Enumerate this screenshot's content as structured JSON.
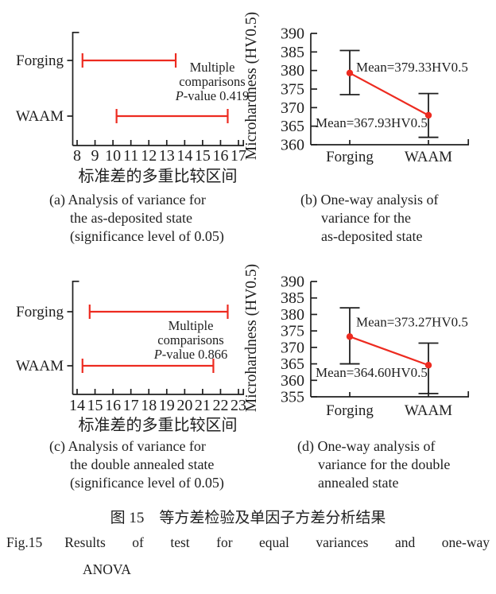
{
  "accent_color": "#ed2b20",
  "axis_color": "#1f1f1f",
  "panels": {
    "a": {
      "caption_lines": [
        "(a) Analysis of variance for",
        "the as-deposited state",
        "(significance level of 0.05)"
      ]
    },
    "b": {
      "caption_lines": [
        "(b) One-way analysis of",
        "variance for the",
        "as-deposited state"
      ]
    },
    "c": {
      "caption_lines": [
        "(c) Analysis of variance for",
        "the double annealed state",
        "(significance level of 0.05)"
      ]
    },
    "d": {
      "caption_lines": [
        "(d) One-way analysis of",
        "variance for the double",
        "annealed state"
      ]
    }
  },
  "figure_caption": {
    "zh": "图 15　等方差检验及单因子方差分析结果",
    "en_label": "Fig.15",
    "en_line1": "Results of test for equal variances and one-way",
    "en_line2": "ANOVA"
  },
  "chart_data": [
    {
      "id": "a",
      "type": "interval",
      "title": "(a) Analysis of variance for the as-deposited state (significance level of 0.05)",
      "categories": [
        "Forging",
        "WAAM"
      ],
      "intervals": [
        [
          8.3,
          13.5
        ],
        [
          10.2,
          16.4
        ]
      ],
      "xlim": [
        8,
        17
      ],
      "xticks": [
        8,
        9,
        10,
        11,
        12,
        13,
        14,
        15,
        16,
        17
      ],
      "xlabel": "标准差的多重比较区间",
      "annotation_lines": [
        "Multiple",
        "comparisons",
        "P-value 0.419"
      ],
      "color": "#ed2b20"
    },
    {
      "id": "b",
      "type": "line-error",
      "title": "(b) One-way analysis of variance for the as-deposited state",
      "categories": [
        "Forging",
        "WAAM"
      ],
      "means": [
        379.33,
        367.93
      ],
      "error_low": [
        373.5,
        362.0
      ],
      "error_high": [
        385.4,
        373.8
      ],
      "ylim": [
        360,
        390
      ],
      "yticks": [
        360,
        365,
        370,
        375,
        380,
        385,
        390
      ],
      "ylabel": "Microhardness (HV0.5)",
      "mean_labels": [
        "Mean=379.33HV0.5",
        "Mean=367.93HV0.5"
      ],
      "color": "#ed2b20"
    },
    {
      "id": "c",
      "type": "interval",
      "title": "(c) Analysis of variance for the double annealed state (significance level of 0.05)",
      "categories": [
        "Forging",
        "WAAM"
      ],
      "intervals": [
        [
          14.7,
          22.4
        ],
        [
          14.3,
          21.6
        ]
      ],
      "xlim": [
        14,
        23
      ],
      "xticks": [
        14,
        15,
        16,
        17,
        18,
        19,
        20,
        21,
        22,
        23
      ],
      "xlabel": "标准差的多重比较区间",
      "annotation_lines": [
        "Multiple",
        "comparisons",
        "P-value 0.866"
      ],
      "color": "#ed2b20"
    },
    {
      "id": "d",
      "type": "line-error",
      "title": "(d) One-way analysis of variance for the double annealed state",
      "categories": [
        "Forging",
        "WAAM"
      ],
      "means": [
        373.27,
        364.6
      ],
      "error_low": [
        365.0,
        356.0
      ],
      "error_high": [
        382.0,
        371.3
      ],
      "ylim": [
        355,
        390
      ],
      "yticks": [
        355,
        360,
        365,
        370,
        375,
        380,
        385,
        390
      ],
      "ylabel": "Microhardness (HV0.5)",
      "mean_labels": [
        "Mean=373.27HV0.5",
        "Mean=364.60HV0.5"
      ],
      "color": "#ed2b20"
    }
  ]
}
